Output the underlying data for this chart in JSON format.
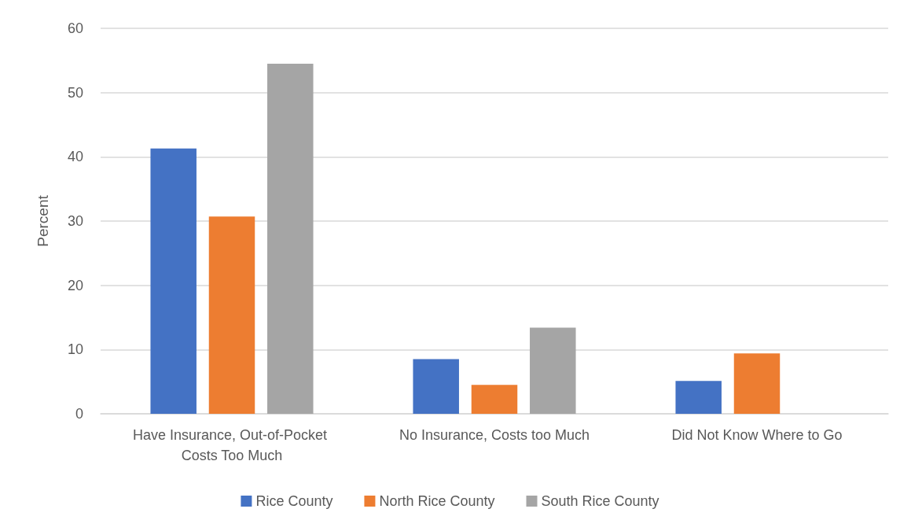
{
  "chart_data": {
    "type": "bar",
    "ylabel": "Percent",
    "categories": [
      "Have Insurance, Out-of-Pocket Costs Too Much",
      "No Insurance, Costs too Much",
      "Did Not Know Where to Go"
    ],
    "series": [
      {
        "name": "Rice County",
        "color": "#4472c4",
        "values": [
          41.3,
          8.5,
          5.1
        ]
      },
      {
        "name": "North Rice County",
        "color": "#ed7d31",
        "values": [
          30.7,
          4.5,
          9.4
        ]
      },
      {
        "name": "South Rice County",
        "color": "#a5a5a5",
        "values": [
          54.5,
          13.4,
          null
        ]
      }
    ],
    "ylim": [
      0,
      60
    ],
    "yticks": [
      0,
      10,
      20,
      30,
      40,
      50,
      60
    ],
    "grid": "y",
    "legend": "bottom"
  }
}
